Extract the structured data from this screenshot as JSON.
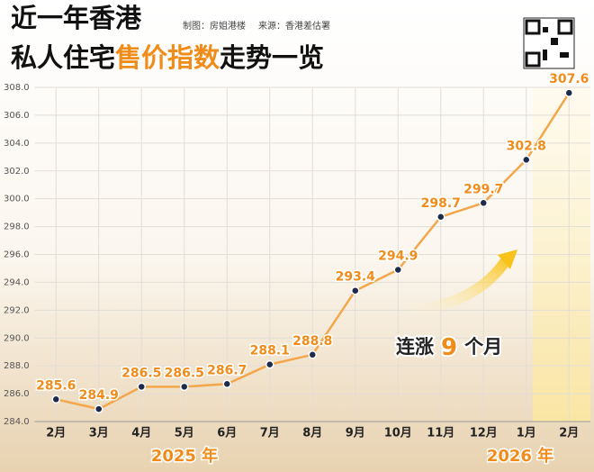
{
  "chart_data": {
    "type": "line",
    "title": {
      "line1": "近一年香港",
      "line2": [
        "私人住宅",
        "售价指数",
        "走势一览"
      ]
    },
    "credits": [
      "制图：房姐港楼",
      "来源：香港差估署"
    ],
    "annotation": [
      "连涨",
      "9",
      "个月"
    ],
    "year_labels": [
      "2025 年",
      "2026 年"
    ],
    "categories": [
      "2月",
      "3月",
      "4月",
      "5月",
      "6月",
      "7月",
      "8月",
      "9月",
      "10月",
      "11月",
      "12月",
      "1月",
      "2月"
    ],
    "series": [
      {
        "color": "#f4a64a",
        "values": [
          285.6,
          284.9,
          286.5,
          286.5,
          286.7,
          288.1,
          288.8,
          293.4,
          294.9,
          298.7,
          299.7,
          302.8,
          307.6
        ]
      }
    ],
    "ylim": [
      284,
      308
    ],
    "yticks": [
      {
        "value": 284,
        "label": "284.0"
      },
      {
        "value": 286,
        "label": "286.0"
      },
      {
        "value": 288,
        "label": "288.0"
      },
      {
        "value": 290,
        "label": "290.0"
      },
      {
        "value": 292,
        "label": "292.0"
      },
      {
        "value": 294,
        "label": "294.0"
      },
      {
        "value": 296,
        "label": "296.0"
      },
      {
        "value": 298,
        "label": "298.0"
      },
      {
        "value": 300,
        "label": "300.0"
      },
      {
        "value": 302,
        "label": "302.0"
      },
      {
        "value": 304,
        "label": "304.0"
      },
      {
        "value": 306,
        "label": "306.0"
      },
      {
        "value": 308,
        "label": "308.0"
      }
    ],
    "grid": true
  }
}
